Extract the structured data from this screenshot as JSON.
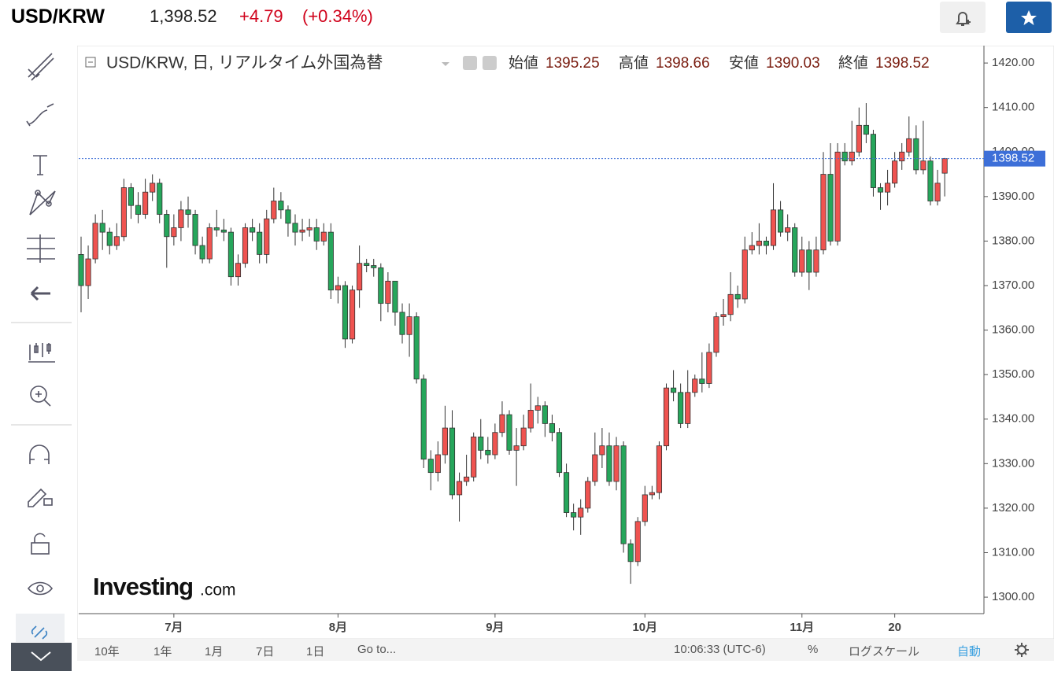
{
  "header": {
    "symbol": "USD/KRW",
    "price": "1,398.52",
    "change": "+4.79",
    "change_pct": "(+0.34%)"
  },
  "legend": {
    "title": "USD/KRW, 日, リアルタイム外国為替",
    "open_label": "始値",
    "high_label": "高値",
    "low_label": "安値",
    "close_label": "終値"
  },
  "logo": {
    "brand": "Investing",
    "suffix": ".com"
  },
  "toolbar": {
    "ranges": [
      "10年",
      "1年",
      "1月",
      "7日",
      "1日"
    ],
    "goto": "Go to...",
    "time": "10:06:33 (UTC-6)",
    "percent": "%",
    "log": "ログスケール",
    "auto": "自動"
  },
  "chart_data": {
    "type": "candlestick",
    "up_color": "#ef5350",
    "down_color": "#26a65b",
    "open": [
      1377,
      1370,
      1376,
      1384,
      1382,
      1379,
      1381,
      1392,
      1388,
      1386,
      1391,
      1393,
      1386,
      1381,
      1383,
      1387,
      1386,
      1379,
      1376,
      1383,
      1382.5,
      1382,
      1372,
      1375,
      1383,
      1382,
      1377,
      1385,
      1389,
      1387,
      1384,
      1382,
      1382.5,
      1383,
      1380,
      1382,
      1369,
      1370,
      1358,
      1369,
      1375,
      1374.5,
      1374,
      1366,
      1371,
      1364,
      1359,
      1363,
      1349,
      1331,
      1328,
      1332,
      1338,
      1323,
      1326,
      1327,
      1336,
      1333,
      1332,
      1337,
      1341,
      1333,
      1334,
      1338,
      1342,
      1343,
      1339,
      1337,
      1328,
      1319,
      1318,
      1320,
      1326,
      1332,
      1334,
      1326,
      1334,
      1312,
      1308,
      1317,
      1323,
      1323.5,
      1334,
      1347,
      1346,
      1339,
      1346,
      1349,
      1348,
      1355,
      1363,
      1363.5,
      1368,
      1367,
      1378,
      1379,
      1380,
      1379,
      1387,
      1382,
      1383,
      1373,
      1378,
      1373,
      1378,
      1395,
      1380,
      1400,
      1398,
      1400,
      1406,
      1404,
      1392,
      1391,
      1393,
      1398,
      1400,
      1403,
      1396,
      1398,
      1389,
      1395.25
    ],
    "high": [
      1381,
      1379,
      1386,
      1387,
      1383,
      1384,
      1394,
      1393,
      1391,
      1394,
      1395,
      1394,
      1387,
      1386,
      1389,
      1390,
      1387,
      1381,
      1384,
      1387,
      1385,
      1383,
      1377,
      1384,
      1385,
      1384,
      1387,
      1392,
      1391,
      1388,
      1386,
      1385,
      1385,
      1385,
      1384,
      1384,
      1372,
      1371,
      1370,
      1379,
      1376,
      1376,
      1375,
      1373,
      1371,
      1366,
      1366,
      1364,
      1350,
      1333,
      1335,
      1343,
      1342,
      1328,
      1332,
      1337,
      1340,
      1336,
      1339,
      1344,
      1342,
      1338,
      1341,
      1348,
      1345,
      1344,
      1341,
      1338,
      1330,
      1321,
      1322,
      1327,
      1337,
      1338,
      1337,
      1336,
      1335,
      1313,
      1318,
      1325,
      1325,
      1335,
      1348,
      1351,
      1348,
      1351,
      1350,
      1355,
      1357,
      1364,
      1367,
      1373,
      1370,
      1381,
      1382,
      1384,
      1381,
      1393,
      1389,
      1386,
      1384,
      1381,
      1380,
      1381,
      1400,
      1402,
      1402,
      1402,
      1407,
      1410,
      1411,
      1405,
      1393,
      1396,
      1400,
      1402,
      1408,
      1406,
      1407,
      1399,
      1396,
      1398.66
    ],
    "low": [
      1364,
      1367,
      1375,
      1378,
      1377,
      1378,
      1380,
      1385,
      1384,
      1385,
      1389,
      1384,
      1374,
      1379,
      1380,
      1383,
      1377,
      1375,
      1375,
      1381,
      1380,
      1370,
      1370,
      1374,
      1380,
      1375,
      1375,
      1384,
      1385,
      1381,
      1379,
      1380,
      1381,
      1378,
      1379,
      1367,
      1366,
      1356,
      1357,
      1365,
      1373,
      1372,
      1362,
      1364,
      1361,
      1357,
      1354,
      1348,
      1329,
      1324,
      1326,
      1330,
      1322,
      1317,
      1325,
      1326,
      1331,
      1330,
      1331,
      1336,
      1332,
      1325,
      1333,
      1337,
      1339,
      1336,
      1335,
      1327,
      1318,
      1315,
      1314,
      1319,
      1325,
      1329,
      1325,
      1324,
      1310,
      1303,
      1307,
      1316,
      1322,
      1322,
      1333,
      1344,
      1338,
      1338,
      1345,
      1346,
      1347,
      1354,
      1361,
      1362,
      1365,
      1366,
      1377,
      1377,
      1377,
      1378,
      1381,
      1380,
      1372,
      1372,
      1369,
      1372,
      1377,
      1379,
      1379,
      1397,
      1397,
      1399,
      1402,
      1390,
      1387,
      1388,
      1392,
      1396,
      1399,
      1395,
      1395,
      1388,
      1388,
      1390.03
    ],
    "close": [
      1370,
      1376,
      1384,
      1382,
      1379,
      1381,
      1392,
      1388,
      1386,
      1391,
      1393,
      1386,
      1381,
      1383,
      1387,
      1386,
      1379,
      1376,
      1383,
      1382.5,
      1382,
      1372,
      1375,
      1383,
      1382,
      1377,
      1385,
      1389,
      1387,
      1384,
      1382,
      1382.5,
      1383,
      1380,
      1382,
      1369,
      1370,
      1358,
      1369,
      1375,
      1374.5,
      1374,
      1366,
      1371,
      1364,
      1359,
      1363,
      1349,
      1331,
      1328,
      1332,
      1338,
      1323,
      1326,
      1327,
      1336,
      1333,
      1332,
      1337,
      1341,
      1333,
      1334,
      1338,
      1342,
      1343,
      1339,
      1337,
      1328,
      1319,
      1318,
      1320,
      1326,
      1332,
      1334,
      1326,
      1334,
      1312,
      1308,
      1317,
      1323,
      1323.5,
      1334,
      1347,
      1346,
      1339,
      1346,
      1349,
      1348,
      1355,
      1363,
      1363.5,
      1368,
      1367,
      1378,
      1379,
      1380,
      1379,
      1387,
      1382,
      1383,
      1373,
      1378,
      1373,
      1378,
      1395,
      1380,
      1400,
      1398,
      1400,
      1406,
      1404,
      1392,
      1391,
      1393,
      1398,
      1400,
      1403,
      1396,
      1398,
      1389,
      1393,
      1398.52
    ],
    "xlim": [
      -0.33,
      126.5
    ],
    "xticks": [
      {
        "value": 13,
        "label": "7月"
      },
      {
        "value": 36,
        "label": "8月"
      },
      {
        "value": 58,
        "label": "9月"
      },
      {
        "value": 79,
        "label": "10月"
      },
      {
        "value": 101,
        "label": "11月"
      },
      {
        "value": 114,
        "label": "20"
      }
    ],
    "ylim": [
      1296.3,
      1423.2
    ],
    "yticks": [
      {
        "value": 1300,
        "label": "1300.00"
      },
      {
        "value": 1310,
        "label": "1310.00"
      },
      {
        "value": 1320,
        "label": "1320.00"
      },
      {
        "value": 1330,
        "label": "1330.00"
      },
      {
        "value": 1340,
        "label": "1340.00"
      },
      {
        "value": 1350,
        "label": "1350.00"
      },
      {
        "value": 1360,
        "label": "1360.00"
      },
      {
        "value": 1370,
        "label": "1370.00"
      },
      {
        "value": 1380,
        "label": "1380.00"
      },
      {
        "value": 1390,
        "label": "1390.00"
      },
      {
        "value": 1400,
        "label": "1400.00"
      },
      {
        "value": 1410,
        "label": "1410.00"
      },
      {
        "value": 1420,
        "label": "1420.00"
      }
    ],
    "grid": false,
    "price_line_color": "#3d6fd8"
  }
}
